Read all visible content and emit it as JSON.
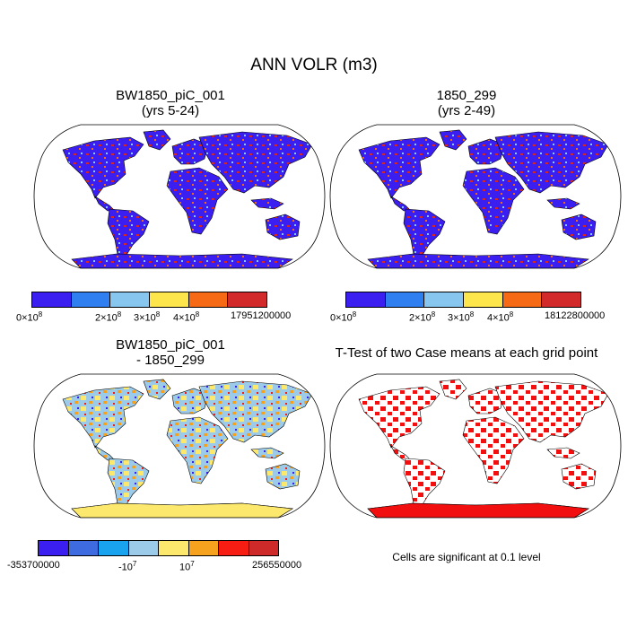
{
  "title": "ANN VOLR (m3)",
  "panels": {
    "case1": {
      "name": "BW1850_piC_001",
      "years": "(yrs 5-24)"
    },
    "case2": {
      "name": "1850_299",
      "years": "(yrs 2-49)"
    },
    "diff": {
      "line1": "BW1850_piC_001",
      "line2": "- 1850_299"
    },
    "ttest": {
      "title": "T-Test of two Case means at each grid point"
    }
  },
  "colorbars": {
    "case1": {
      "colors": [
        "#3b1ff0",
        "#2f7ff0",
        "#87c7ef",
        "#fce64c",
        "#f66a15",
        "#d22a2a"
      ],
      "labels": [
        "0×10",
        "2×10",
        "3×10",
        "4×10",
        "17951200000"
      ],
      "exp": "8"
    },
    "case2": {
      "colors": [
        "#3b1ff0",
        "#2f7ff0",
        "#87c7ef",
        "#fce64c",
        "#f66a15",
        "#d22a2a"
      ],
      "labels": [
        "0×10",
        "2×10",
        "3×10",
        "4×10",
        "18122800000"
      ],
      "exp": "8"
    },
    "diff": {
      "colors": [
        "#3b1ff0",
        "#3f6be0",
        "#19a3ef",
        "#9ccbe9",
        "#fce86c",
        "#f7a21f",
        "#f71d12",
        "#cf2a2a"
      ],
      "labels": [
        "-353700000",
        "-10",
        "10",
        "256550000"
      ],
      "exp": "7"
    }
  },
  "note": "Cells are significant at 0.1 level",
  "colors": {
    "ocean": "#ffffff",
    "land_case": "#3b1ff0",
    "antarctica_diff": "#fce86c",
    "land_diff": "#9ccbe9",
    "sig": "#f20f0f"
  }
}
